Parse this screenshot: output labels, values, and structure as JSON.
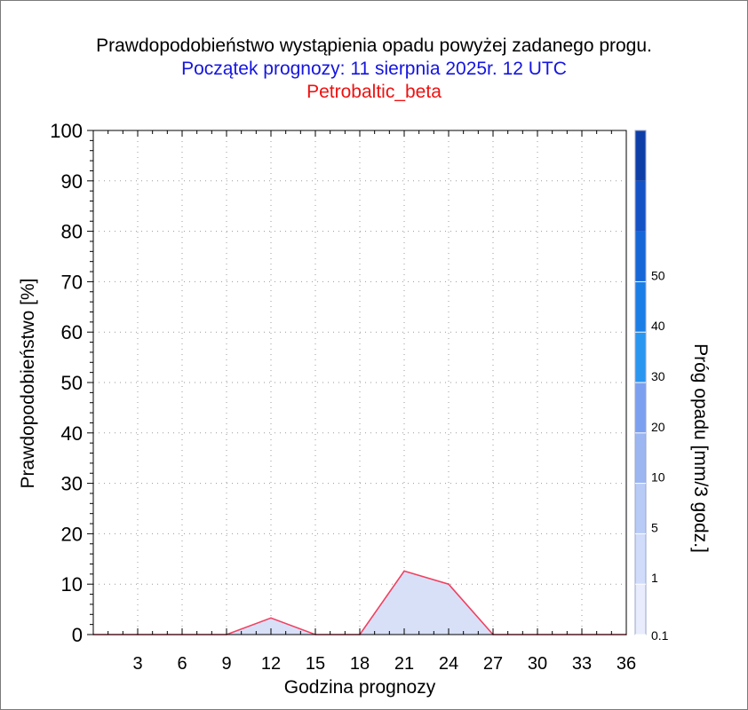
{
  "chart_data": {
    "type": "area",
    "title": "Prawdopodobieństwo wystąpienia opadu powyżej zadanego progu.",
    "subtitle": "Początek prognozy: 11 sierpnia 2025r. 12 UTC",
    "model": "Petrobaltic_beta",
    "xlabel": "Godzina prognozy",
    "ylabel": "Prawdopodobieństwo [%]",
    "xlim": [
      0,
      36
    ],
    "ylim": [
      0,
      100
    ],
    "x_ticks": [
      3,
      6,
      9,
      12,
      15,
      18,
      21,
      24,
      27,
      30,
      33,
      36
    ],
    "y_ticks": [
      0,
      10,
      20,
      30,
      40,
      50,
      60,
      70,
      80,
      90,
      100
    ],
    "grid": true,
    "series": [
      {
        "color": "#f04060",
        "fill": "#d8e0f8",
        "x": [
          0,
          3,
          6,
          9,
          12,
          15,
          18,
          21,
          24,
          27,
          30,
          33,
          36
        ],
        "y": [
          0,
          0,
          0,
          0,
          3.3,
          0,
          0,
          12.6,
          10,
          0,
          0,
          0,
          0
        ]
      }
    ],
    "colorbar": {
      "label": "Próg opadu [mm/3 godz.]",
      "tick_labels": [
        "0.1",
        "1",
        "5",
        "10",
        "20",
        "30",
        "40",
        "50"
      ],
      "colors": [
        "#e8ecfc",
        "#d0dcfa",
        "#b8cbf6",
        "#9cb6f2",
        "#7ca0f0",
        "#2a96f0",
        "#1b7ee6",
        "#1666d8",
        "#1452c6",
        "#0d3ea8"
      ]
    }
  }
}
